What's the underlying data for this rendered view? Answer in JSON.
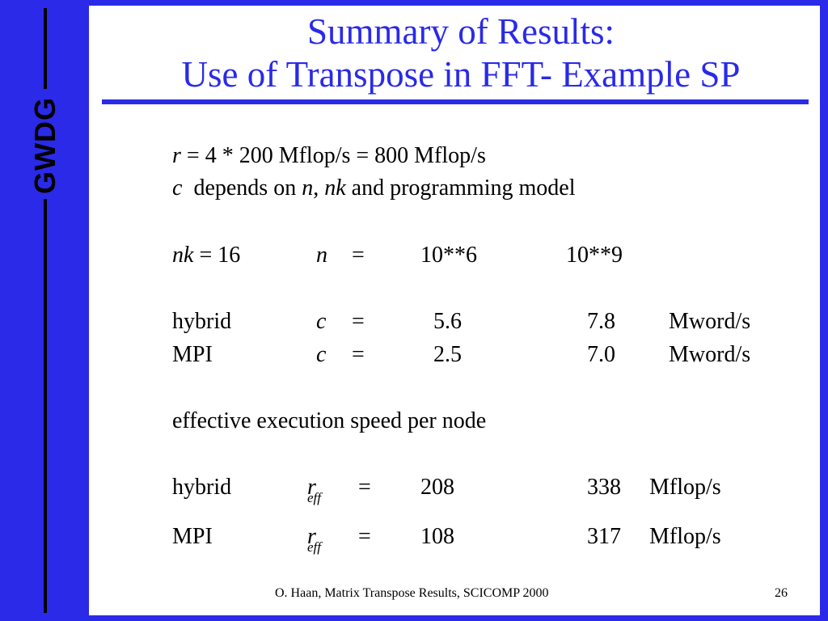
{
  "logo": {
    "text": "GWDG"
  },
  "title": {
    "line1": "Summary of Results:",
    "line2": "Use of Transpose in FFT- Example SP"
  },
  "body": {
    "r_line": {
      "var": "r",
      "rest": " = 4 * 200 Mflop/s = 800 Mflop/s"
    },
    "c_line": {
      "var": "c",
      "t1": "  depends on ",
      "n": "n",
      "comma": ", ",
      "nk": "nk",
      "t2": " and programming model"
    },
    "nk_line": {
      "nk": "nk",
      "nk_value": " = 16",
      "n": "n",
      "eq": "=",
      "v1": "10**6",
      "v2": "10**9"
    },
    "c_rows": [
      {
        "label": "hybrid",
        "var": "c",
        "eq": "=",
        "v1": "5.6",
        "v2": "7.8",
        "unit": "Mword/s"
      },
      {
        "label": "MPI",
        "var": "c",
        "eq": "=",
        "v1": "2.5",
        "v2": "7.0",
        "unit": "Mword/s"
      }
    ],
    "speed_heading": "effective execution speed per node",
    "r_rows": [
      {
        "label": "hybrid",
        "var": "r",
        "sub": "eff",
        "eq": "=",
        "v1": "208",
        "v2": "338",
        "unit": "Mflop/s"
      },
      {
        "label": "MPI",
        "var": "r",
        "sub": "eff",
        "eq": "=",
        "v1": "108",
        "v2": "317",
        "unit": "Mflop/s"
      }
    ]
  },
  "footer": {
    "citation": "O. Haan, Matrix Transpose Results, SCICOMP 2000",
    "page": "26"
  }
}
